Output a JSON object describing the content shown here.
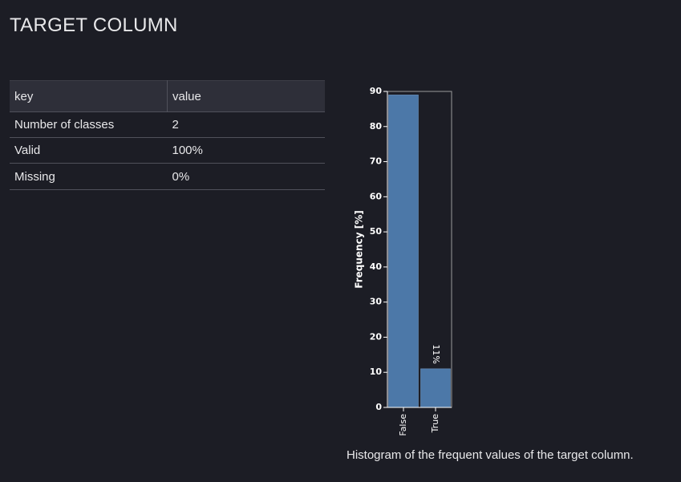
{
  "section": {
    "title": "TARGET COLUMN"
  },
  "stats_table": {
    "headers": {
      "key": "key",
      "value": "value"
    },
    "rows": [
      {
        "key": "Number of classes",
        "value": "2"
      },
      {
        "key": "Valid",
        "value": "100%"
      },
      {
        "key": "Missing",
        "value": "0%"
      }
    ]
  },
  "chart_data": {
    "type": "bar",
    "categories": [
      "False",
      "True"
    ],
    "values": [
      89,
      11
    ],
    "data_labels": [
      "",
      "11%"
    ],
    "ylabel": "Frequency [%]",
    "xlabel": "",
    "ylim": [
      0,
      90
    ],
    "yticks": [
      0,
      10,
      20,
      30,
      40,
      50,
      60,
      70,
      80,
      90
    ],
    "bar_color": "#4c78a8",
    "grid": false,
    "legend": "none"
  },
  "caption": "Histogram of the frequent values of the target column."
}
